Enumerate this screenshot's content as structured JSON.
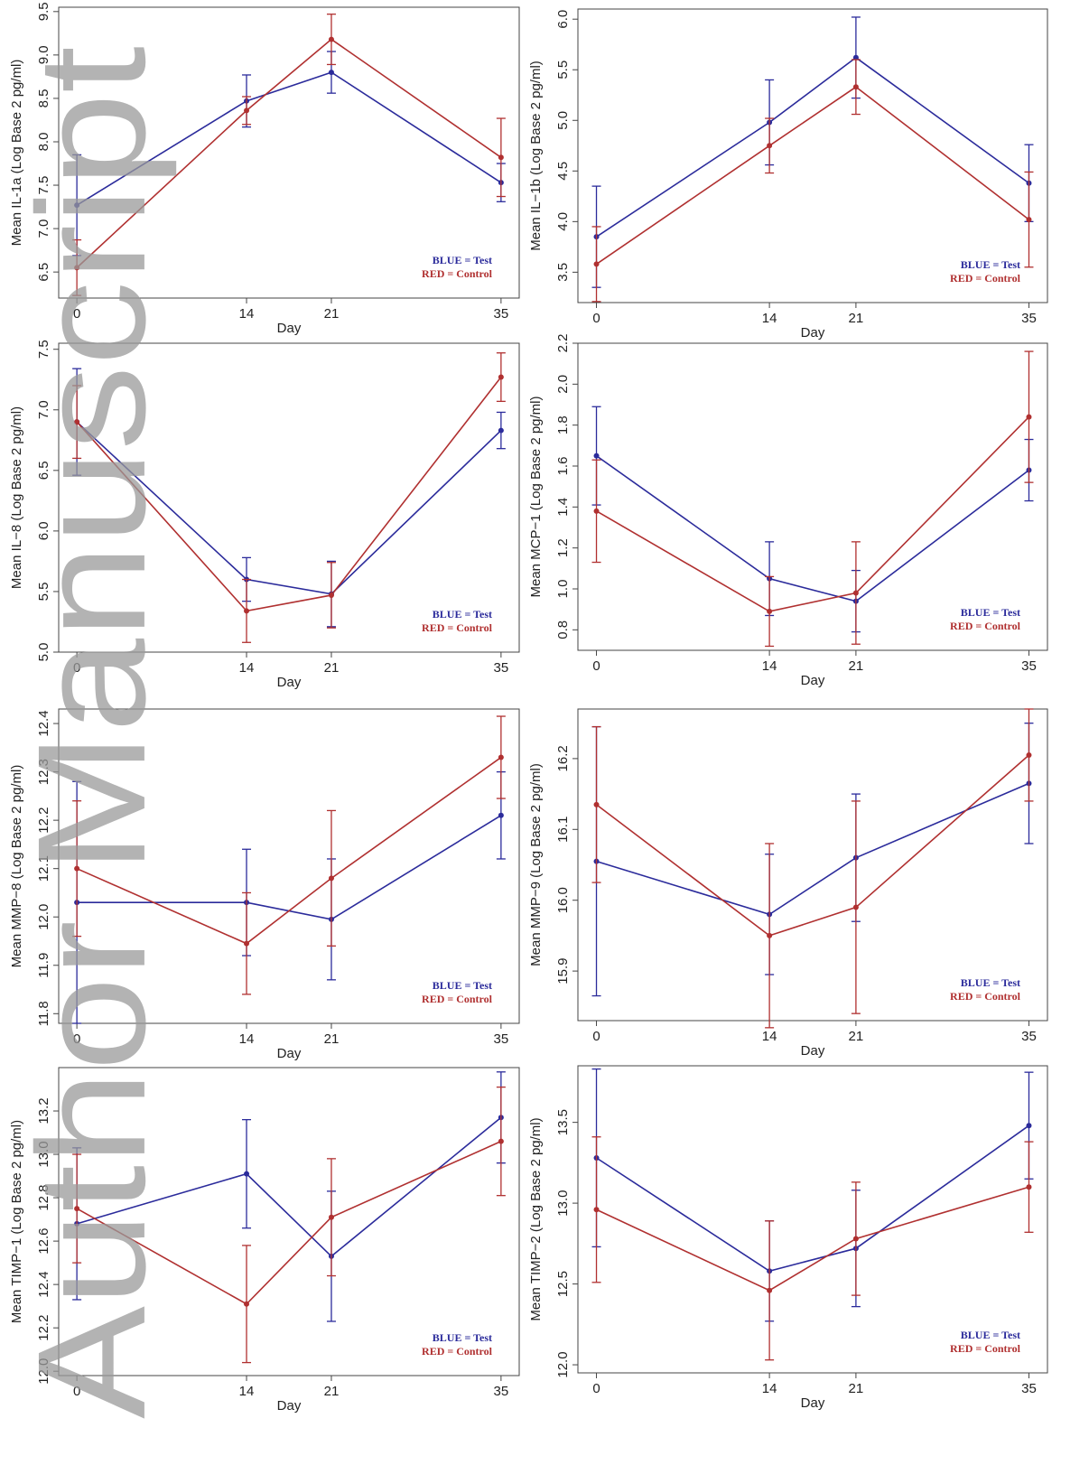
{
  "watermark": "Author Manuscript",
  "chart_data": [
    {
      "type": "line",
      "ylabel": "Mean IL-1a (Log Base 2 pg/ml)",
      "xlabel": "Day",
      "x": [
        0,
        14,
        21,
        35
      ],
      "xlim": [
        -1.5,
        36.5
      ],
      "xticks": [
        0,
        14,
        21,
        35
      ],
      "ylim": [
        6.2,
        9.55
      ],
      "yticks": [
        {
          "value": 6.5,
          "label": "6.5"
        },
        {
          "value": 7,
          "label": "7.0"
        },
        7.5,
        {
          "value": 8,
          "label": "8.0"
        },
        8.5,
        {
          "value": 9,
          "label": "9.0"
        },
        9.5
      ],
      "series": [
        {
          "name": "BLUE = Test",
          "color": "#2b2b9b",
          "values": [
            7.27,
            8.47,
            8.8,
            7.53
          ],
          "errors": [
            0.58,
            0.3,
            0.24,
            0.22
          ]
        },
        {
          "name": "RED = Control",
          "color": "#b03030",
          "values": [
            6.55,
            8.36,
            9.18,
            7.82
          ],
          "errors": [
            0.32,
            0.16,
            0.29,
            0.45
          ]
        }
      ]
    },
    {
      "type": "line",
      "ylabel": "Mean IL−1b (Log Base 2 pg/ml)",
      "xlabel": "Day",
      "x": [
        0,
        14,
        21,
        35
      ],
      "xlim": [
        -1.5,
        36.5
      ],
      "xticks": [
        0,
        14,
        21,
        35
      ],
      "ylim": [
        3.2,
        6.1
      ],
      "yticks": [
        3.5,
        {
          "value": 4,
          "label": "4.0"
        },
        4.5,
        {
          "value": 5,
          "label": "5.0"
        },
        5.5,
        {
          "value": 6,
          "label": "6.0"
        }
      ],
      "series": [
        {
          "name": "BLUE = Test",
          "color": "#2b2b9b",
          "values": [
            3.85,
            4.98,
            5.62,
            4.38
          ],
          "errors": [
            0.5,
            0.42,
            0.4,
            0.38
          ]
        },
        {
          "name": "RED = Control",
          "color": "#b03030",
          "values": [
            3.58,
            4.75,
            5.33,
            4.02
          ],
          "errors": [
            0.37,
            0.27,
            0.27,
            0.47
          ]
        }
      ]
    },
    {
      "type": "line",
      "ylabel": "Mean IL−8 (Log Base 2 pg/ml)",
      "xlabel": "Day",
      "x": [
        0,
        14,
        21,
        35
      ],
      "xlim": [
        -1.5,
        36.5
      ],
      "xticks": [
        0,
        14,
        21,
        35
      ],
      "ylim": [
        5.0,
        7.55
      ],
      "yticks": [
        {
          "value": 5,
          "label": "5.0"
        },
        5.5,
        {
          "value": 6,
          "label": "6.0"
        },
        6.5,
        {
          "value": 7,
          "label": "7.0"
        },
        7.5
      ],
      "series": [
        {
          "name": "BLUE = Test",
          "color": "#2b2b9b",
          "values": [
            6.9,
            5.6,
            5.48,
            6.83
          ],
          "errors": [
            0.44,
            0.18,
            0.27,
            0.15
          ]
        },
        {
          "name": "RED = Control",
          "color": "#b03030",
          "values": [
            6.9,
            5.34,
            5.47,
            7.27
          ],
          "errors": [
            0.3,
            0.26,
            0.27,
            0.2
          ]
        }
      ]
    },
    {
      "type": "line",
      "ylabel": "Mean MCP−1 (Log Base 2 pg/ml)",
      "xlabel": "Day",
      "x": [
        0,
        14,
        21,
        35
      ],
      "xlim": [
        -1.5,
        36.5
      ],
      "xticks": [
        0,
        14,
        21,
        35
      ],
      "ylim": [
        0.7,
        2.2
      ],
      "yticks": [
        0.8,
        {
          "value": 1,
          "label": "1.0"
        },
        1.2,
        1.4,
        1.6,
        1.8,
        {
          "value": 2,
          "label": "2.0"
        },
        2.2
      ],
      "series": [
        {
          "name": "BLUE = Test",
          "color": "#2b2b9b",
          "values": [
            1.65,
            1.05,
            0.94,
            1.58
          ],
          "errors": [
            0.24,
            0.18,
            0.15,
            0.15
          ]
        },
        {
          "name": "RED = Control",
          "color": "#b03030",
          "values": [
            1.38,
            0.89,
            0.98,
            1.84
          ],
          "errors": [
            0.25,
            0.17,
            0.25,
            0.32
          ]
        }
      ]
    },
    {
      "type": "line",
      "ylabel": "Mean MMP−8 (Log Base 2 pg/ml)",
      "xlabel": "Day",
      "x": [
        0,
        14,
        21,
        35
      ],
      "xlim": [
        -1.5,
        36.5
      ],
      "xticks": [
        0,
        14,
        21,
        35
      ],
      "ylim": [
        11.78,
        12.43
      ],
      "yticks": [
        11.8,
        11.9,
        {
          "value": 12,
          "label": "12.0"
        },
        12.1,
        12.2,
        12.3,
        12.4
      ],
      "series": [
        {
          "name": "BLUE = Test",
          "color": "#2b2b9b",
          "values": [
            12.03,
            12.03,
            11.995,
            12.21
          ],
          "errors": [
            0.25,
            0.11,
            0.125,
            0.09
          ]
        },
        {
          "name": "RED = Control",
          "color": "#b03030",
          "values": [
            12.1,
            11.945,
            12.08,
            12.33
          ],
          "errors": [
            0.14,
            0.105,
            0.14,
            0.085
          ]
        }
      ]
    },
    {
      "type": "line",
      "ylabel": "Mean MMP−9 (Log Base 2 pg/ml)",
      "xlabel": "Day",
      "x": [
        0,
        14,
        21,
        35
      ],
      "xlim": [
        -1.5,
        36.5
      ],
      "xticks": [
        0,
        14,
        21,
        35
      ],
      "ylim": [
        15.83,
        16.27
      ],
      "yticks": [
        15.9,
        {
          "value": 16,
          "label": "16.0"
        },
        16.1,
        16.2
      ],
      "series": [
        {
          "name": "BLUE = Test",
          "color": "#2b2b9b",
          "values": [
            16.055,
            15.98,
            16.06,
            16.165
          ],
          "errors": [
            0.19,
            0.085,
            0.09,
            0.085
          ]
        },
        {
          "name": "RED = Control",
          "color": "#b03030",
          "values": [
            16.135,
            15.95,
            15.99,
            16.205
          ],
          "errors": [
            0.11,
            0.13,
            0.15,
            0.065
          ]
        }
      ]
    },
    {
      "type": "line",
      "ylabel": "Mean TIMP−1 (Log Base 2 pg/ml)",
      "xlabel": "Day",
      "x": [
        0,
        14,
        21,
        35
      ],
      "xlim": [
        -1.5,
        36.5
      ],
      "xticks": [
        0,
        14,
        21,
        35
      ],
      "ylim": [
        11.98,
        13.4
      ],
      "yticks": [
        {
          "value": 12,
          "label": "12.0"
        },
        12.2,
        12.4,
        12.6,
        12.8,
        {
          "value": 13,
          "label": "13.0"
        },
        13.2
      ],
      "series": [
        {
          "name": "BLUE = Test",
          "color": "#2b2b9b",
          "values": [
            12.68,
            12.91,
            12.53,
            13.17
          ],
          "errors": [
            0.35,
            0.25,
            0.3,
            0.21
          ]
        },
        {
          "name": "RED = Control",
          "color": "#b03030",
          "values": [
            12.75,
            12.31,
            12.71,
            13.06
          ],
          "errors": [
            0.25,
            0.27,
            0.27,
            0.25
          ]
        }
      ]
    },
    {
      "type": "line",
      "ylabel": "Mean TIMP−2 (Log Base 2 pg/ml)",
      "xlabel": "Day",
      "x": [
        0,
        14,
        21,
        35
      ],
      "xlim": [
        -1.5,
        36.5
      ],
      "xticks": [
        0,
        14,
        21,
        35
      ],
      "ylim": [
        11.95,
        13.85
      ],
      "yticks": [
        {
          "value": 12,
          "label": "12.0"
        },
        12.5,
        {
          "value": 13,
          "label": "13.0"
        },
        13.5
      ],
      "series": [
        {
          "name": "BLUE = Test",
          "color": "#2b2b9b",
          "values": [
            13.28,
            12.58,
            12.72,
            13.48
          ],
          "errors": [
            0.55,
            0.31,
            0.36,
            0.33
          ]
        },
        {
          "name": "RED = Control",
          "color": "#b03030",
          "values": [
            12.96,
            12.46,
            12.78,
            13.1
          ],
          "errors": [
            0.45,
            0.43,
            0.35,
            0.28
          ]
        }
      ]
    }
  ]
}
